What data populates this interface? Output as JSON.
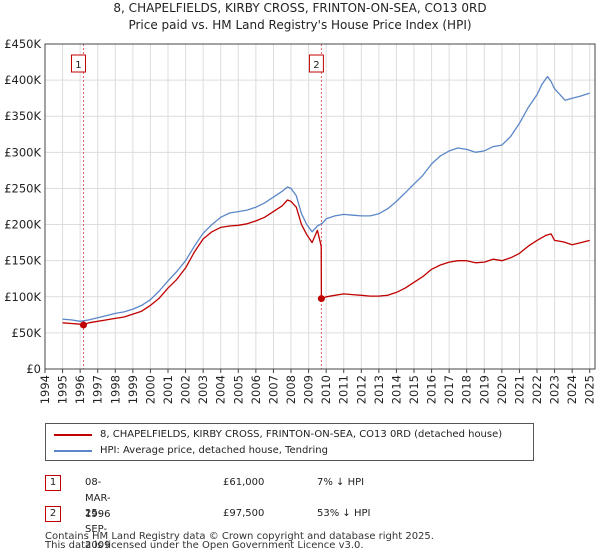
{
  "title_line1": "8, CHAPELFIELDS, KIRBY CROSS, FRINTON-ON-SEA, CO13 0RD",
  "title_line2": "Price paid vs. HM Land Registry's House Price Index (HPI)",
  "colors": {
    "price": "#c00000",
    "hpi": "#5b87c8",
    "grid": "#dddddd",
    "marker": "#e06060"
  },
  "chart_data": {
    "type": "line",
    "xlim": [
      1994,
      2025.3
    ],
    "ylim": [
      0,
      450000
    ],
    "y_ticks": [
      {
        "value": 0,
        "label": "£0"
      },
      {
        "value": 50000,
        "label": "£50K"
      },
      {
        "value": 100000,
        "label": "£100K"
      },
      {
        "value": 150000,
        "label": "£150K"
      },
      {
        "value": 200000,
        "label": "£200K"
      },
      {
        "value": 250000,
        "label": "£250K"
      },
      {
        "value": 300000,
        "label": "£300K"
      },
      {
        "value": 350000,
        "label": "£350K"
      },
      {
        "value": 400000,
        "label": "£400K"
      },
      {
        "value": 450000,
        "label": "£450K"
      }
    ],
    "x_ticks": [
      "1994",
      "1995",
      "1996",
      "1997",
      "1998",
      "1999",
      "2000",
      "2001",
      "2002",
      "2003",
      "2004",
      "2005",
      "2006",
      "2007",
      "2008",
      "2009",
      "2010",
      "2011",
      "2012",
      "2013",
      "2014",
      "2015",
      "2016",
      "2017",
      "2018",
      "2019",
      "2020",
      "2021",
      "2022",
      "2023",
      "2024",
      "2025"
    ],
    "series": [
      {
        "name": "8, CHAPELFIELDS, KIRBY CROSS, FRINTON-ON-SEA, CO13 0RD (detached house)",
        "color": "#c00000",
        "x": [
          1995.0,
          1995.5,
          1996.0,
          1996.19,
          1996.5,
          1997.0,
          1997.5,
          1998.0,
          1998.5,
          1999.0,
          1999.5,
          2000.0,
          2000.5,
          2001.0,
          2001.5,
          2002.0,
          2002.5,
          2003.0,
          2003.5,
          2004.0,
          2004.5,
          2005.0,
          2005.5,
          2006.0,
          2006.5,
          2007.0,
          2007.5,
          2007.8,
          2008.0,
          2008.3,
          2008.6,
          2008.9,
          2009.2,
          2009.5,
          2009.72,
          2009.73,
          2010.0,
          2010.5,
          2011.0,
          2011.5,
          2012.0,
          2012.5,
          2013.0,
          2013.5,
          2014.0,
          2014.5,
          2015.0,
          2015.5,
          2016.0,
          2016.5,
          2017.0,
          2017.5,
          2018.0,
          2018.5,
          2019.0,
          2019.5,
          2020.0,
          2020.5,
          2021.0,
          2021.5,
          2022.0,
          2022.5,
          2022.8,
          2023.0,
          2023.5,
          2024.0,
          2024.5,
          2025.0
        ],
        "values": [
          64000,
          63000,
          62000,
          61000,
          64000,
          66000,
          68000,
          70000,
          72000,
          76000,
          80000,
          88000,
          98000,
          112000,
          124000,
          140000,
          162000,
          180000,
          190000,
          196000,
          198000,
          199000,
          201000,
          205000,
          210000,
          218000,
          226000,
          234000,
          232000,
          224000,
          200000,
          186000,
          175000,
          192000,
          170000,
          97500,
          100000,
          102000,
          104000,
          103000,
          102000,
          101000,
          101000,
          102000,
          106000,
          112000,
          120000,
          128000,
          138000,
          144000,
          148000,
          150000,
          150000,
          147000,
          148000,
          152000,
          150000,
          154000,
          160000,
          170000,
          178000,
          185000,
          187000,
          178000,
          176000,
          172000,
          175000,
          178000
        ]
      },
      {
        "name": "HPI: Average price, detached house, Tendring",
        "color": "#5b87c8",
        "x": [
          1995.0,
          1995.5,
          1996.0,
          1996.5,
          1997.0,
          1997.5,
          1998.0,
          1998.5,
          1999.0,
          1999.5,
          2000.0,
          2000.5,
          2001.0,
          2001.5,
          2002.0,
          2002.5,
          2003.0,
          2003.5,
          2004.0,
          2004.5,
          2005.0,
          2005.5,
          2006.0,
          2006.5,
          2007.0,
          2007.5,
          2007.8,
          2008.0,
          2008.3,
          2008.6,
          2008.9,
          2009.2,
          2009.5,
          2009.8,
          2010.0,
          2010.5,
          2011.0,
          2011.5,
          2012.0,
          2012.5,
          2013.0,
          2013.5,
          2014.0,
          2014.5,
          2015.0,
          2015.5,
          2016.0,
          2016.5,
          2017.0,
          2017.5,
          2018.0,
          2018.5,
          2019.0,
          2019.5,
          2020.0,
          2020.5,
          2021.0,
          2021.5,
          2022.0,
          2022.3,
          2022.6,
          2022.8,
          2023.0,
          2023.3,
          2023.6,
          2024.0,
          2024.5,
          2025.0
        ],
        "values": [
          69000,
          68000,
          66000,
          68000,
          71000,
          74000,
          77000,
          79000,
          83000,
          88000,
          96000,
          108000,
          122000,
          135000,
          150000,
          170000,
          188000,
          200000,
          210000,
          216000,
          218000,
          220000,
          224000,
          230000,
          238000,
          246000,
          252000,
          250000,
          240000,
          215000,
          200000,
          190000,
          198000,
          202000,
          208000,
          212000,
          214000,
          213000,
          212000,
          212000,
          215000,
          222000,
          232000,
          244000,
          256000,
          268000,
          284000,
          295000,
          302000,
          306000,
          304000,
          300000,
          302000,
          308000,
          310000,
          322000,
          340000,
          362000,
          380000,
          395000,
          405000,
          398000,
          388000,
          380000,
          372000,
          375000,
          378000,
          382000
        ]
      }
    ],
    "events": [
      {
        "label": "1",
        "x": 1996.19,
        "value": 61000
      },
      {
        "label": "2",
        "x": 2009.73,
        "value": 97500
      }
    ]
  },
  "legend": {
    "price_label": "8, CHAPELFIELDS, KIRBY CROSS, FRINTON-ON-SEA, CO13 0RD (detached house)",
    "hpi_label": "HPI: Average price, detached house, Tendring"
  },
  "transactions": [
    {
      "num": "1",
      "date": "08-MAR-1996",
      "price": "£61,000",
      "hpi": "7% ↓ HPI"
    },
    {
      "num": "2",
      "date": "25-SEP-2009",
      "price": "£97,500",
      "hpi": "53% ↓ HPI"
    }
  ],
  "footer_line1": "Contains HM Land Registry data © Crown copyright and database right 2025.",
  "footer_line2": "This data is licensed under the Open Government Licence v3.0."
}
